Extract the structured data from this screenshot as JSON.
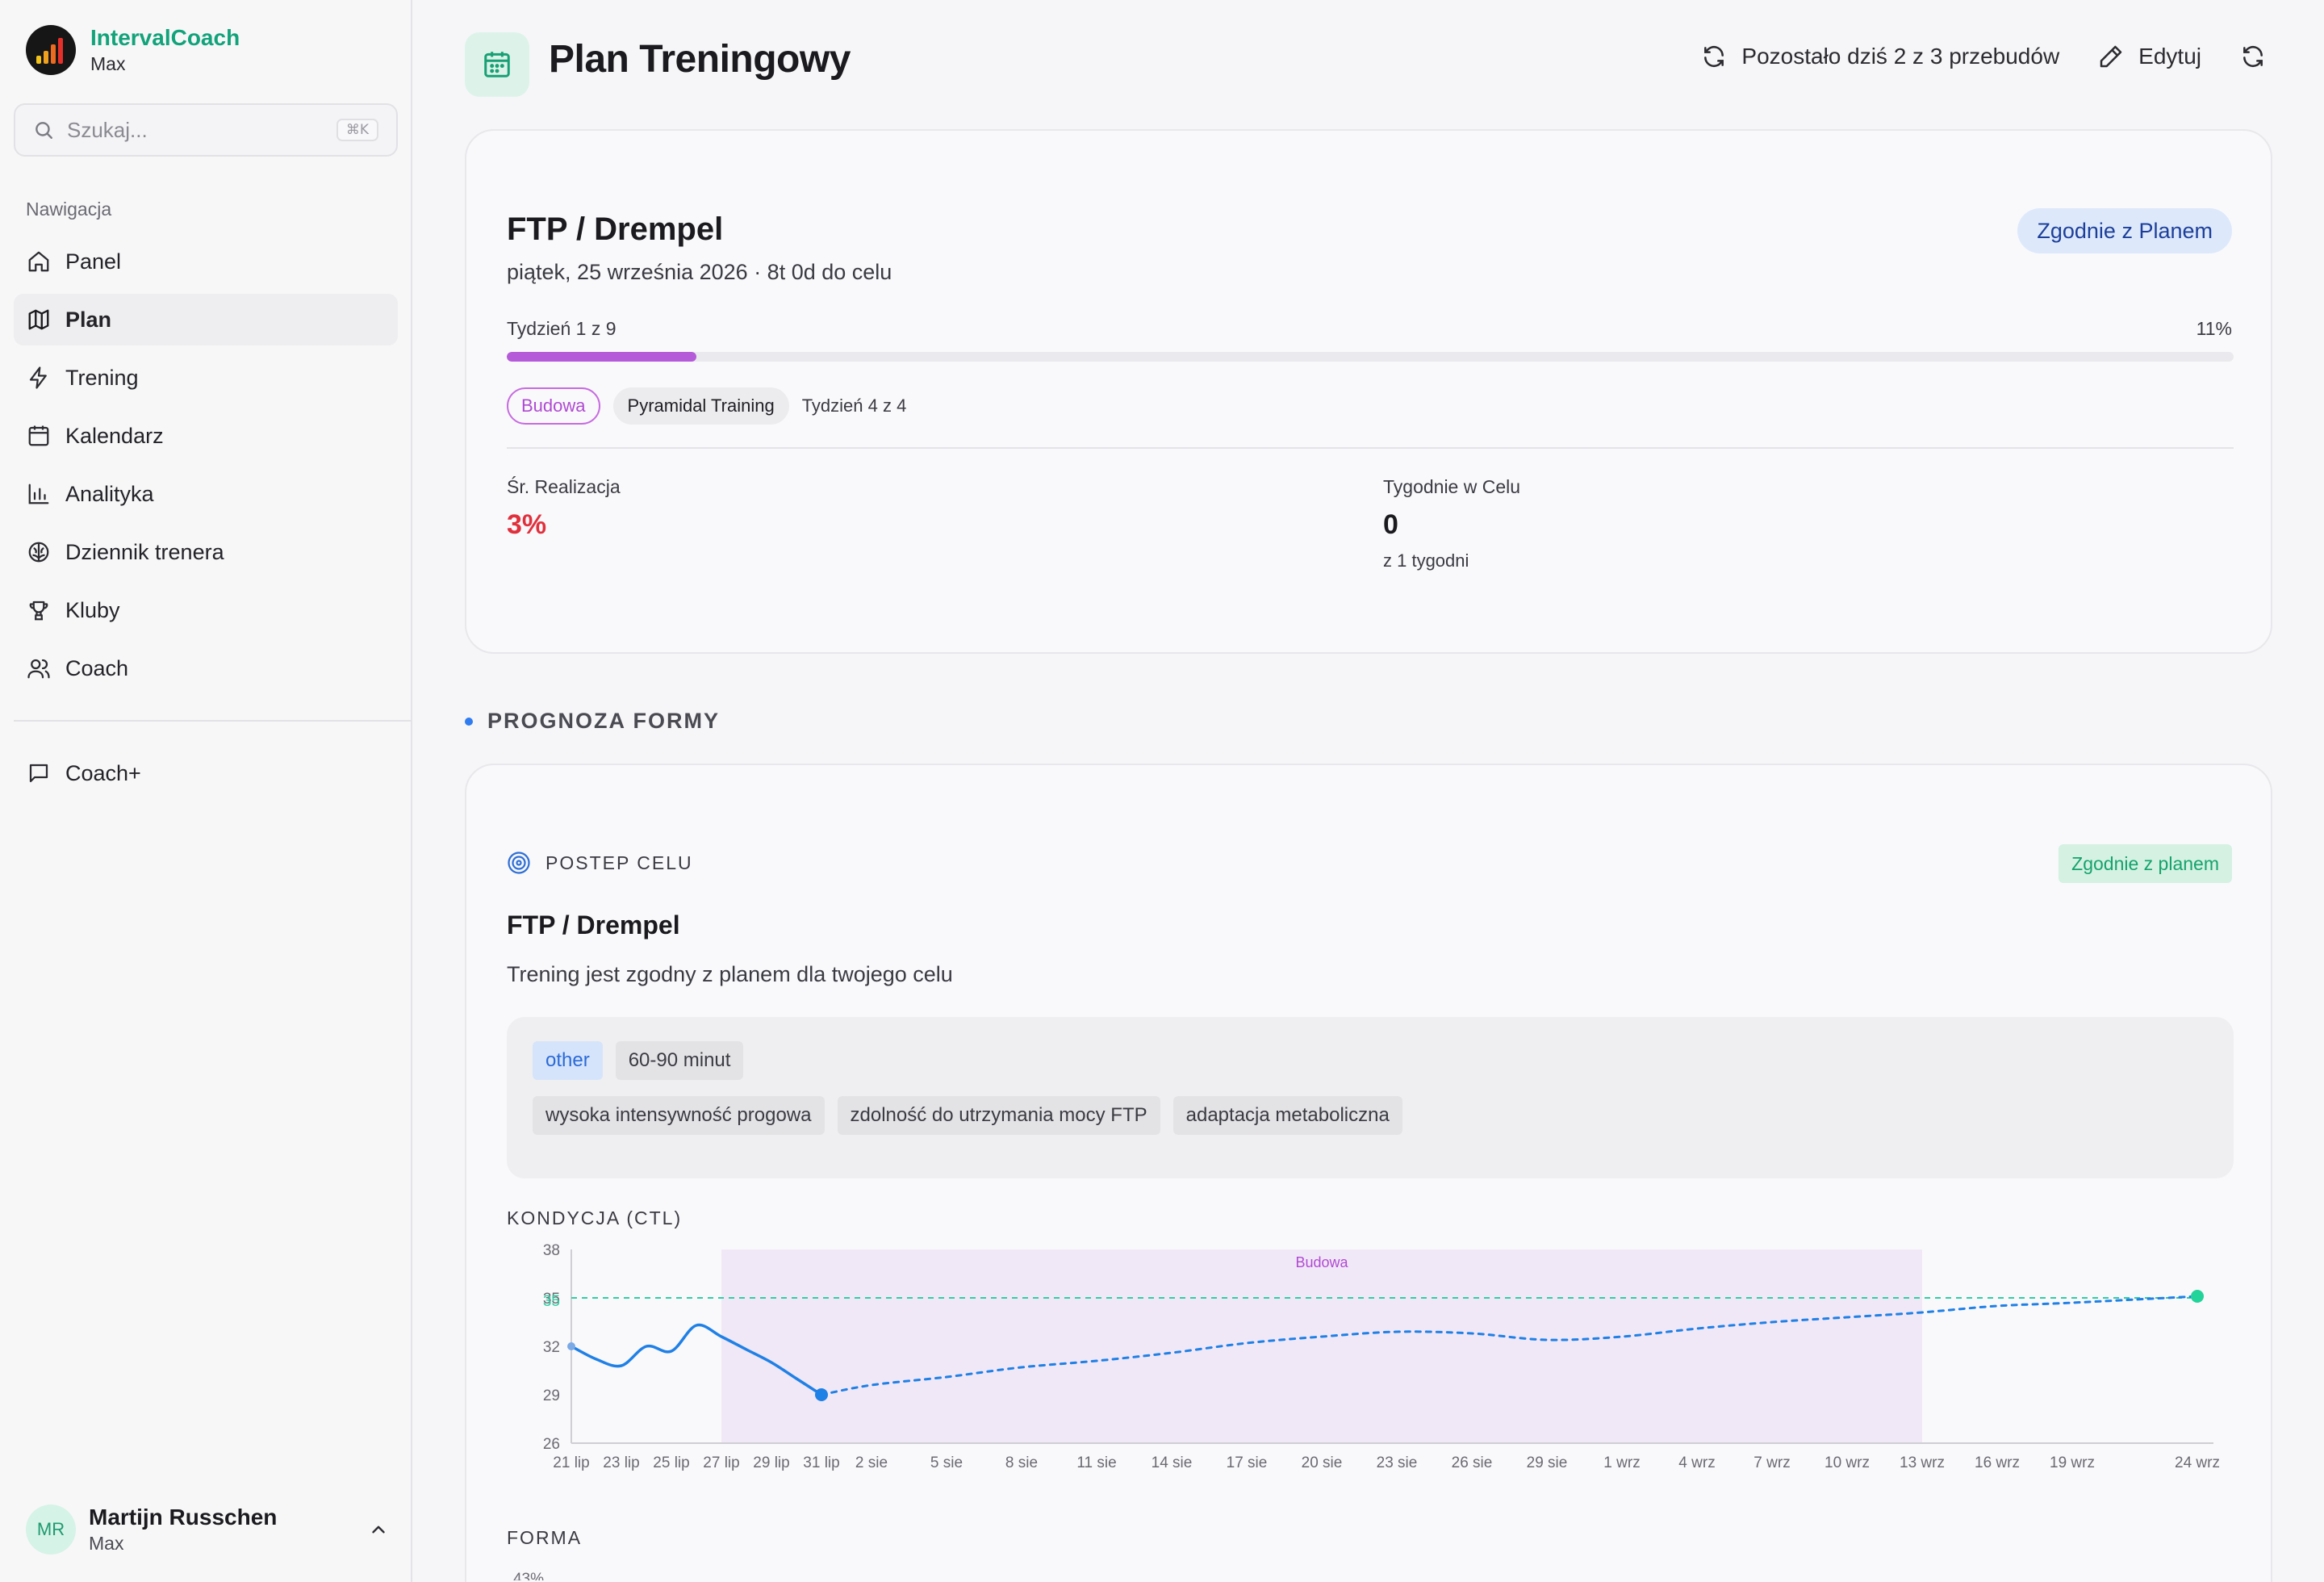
{
  "app": {
    "name": "IntervalCoach",
    "user_plan": "Max"
  },
  "search": {
    "placeholder": "Szukaj...",
    "shortcut": "⌘K"
  },
  "nav": {
    "heading": "Nawigacja",
    "items": [
      {
        "label": "Panel",
        "icon": "home-icon"
      },
      {
        "label": "Plan",
        "icon": "map-icon",
        "active": true
      },
      {
        "label": "Trening",
        "icon": "bolt-icon"
      },
      {
        "label": "Kalendarz",
        "icon": "calendar-icon"
      },
      {
        "label": "Analityka",
        "icon": "bar-chart-icon"
      },
      {
        "label": "Dziennik trenera",
        "icon": "brain-icon"
      },
      {
        "label": "Kluby",
        "icon": "trophy-icon"
      },
      {
        "label": "Coach",
        "icon": "users-icon"
      }
    ],
    "extra": [
      {
        "label": "Coach+",
        "icon": "message-icon"
      }
    ]
  },
  "user": {
    "initials": "MR",
    "name": "Martijn Russchen",
    "plan": "Max"
  },
  "header": {
    "title": "Plan Treningowy",
    "rebuilds": "Pozostało dziś 2 z 3 przebudów",
    "edit": "Edytuj"
  },
  "goal": {
    "title": "FTP / Drempel",
    "date": "piątek, 25 września 2026 · 8t 0d do celu",
    "status": "Zgodnie z Planem",
    "week_label": "Tydzień 1 z 9",
    "percent_label": "11%",
    "progress": 0.11,
    "phase": "Budowa",
    "block": "Pyramidal Training",
    "block_week": "Tydzień 4 z 4",
    "stats": [
      {
        "label": "Śr. Realizacja",
        "value": "3%",
        "sub": ""
      },
      {
        "label": "Tygodnie w Celu",
        "value": "0",
        "sub": "z 1 tygodni"
      }
    ]
  },
  "forecast": {
    "section_title": "PROGNOZA FORMY",
    "label": "POSTEP CELU",
    "status": "Zgodnie z planem",
    "title": "FTP / Drempel",
    "description": "Trening jest zgodny z planem dla twojego celu",
    "chips_row1": [
      "other",
      "60-90 minut"
    ],
    "chips_row2": [
      "wysoka intensywność progowa",
      "zdolność do utrzymania mocy FTP",
      "adaptacja metaboliczna"
    ],
    "chart_title": "KONDYCJA (CTL)",
    "next_title": "FORMA",
    "next_first_tick": "43%"
  },
  "chart_data": {
    "type": "line",
    "title": "KONDYCJA (CTL)",
    "x_tick_labels": [
      "21 lip",
      "23 lip",
      "25 lip",
      "27 lip",
      "29 lip",
      "31 lip",
      "2 sie",
      "5 sie",
      "8 sie",
      "11 sie",
      "14 sie",
      "17 sie",
      "20 sie",
      "23 sie",
      "26 sie",
      "29 sie",
      "1 wrz",
      "4 wrz",
      "7 wrz",
      "10 wrz",
      "13 wrz",
      "16 wrz",
      "19 wrz",
      "24 wrz"
    ],
    "y_ticks": [
      26,
      29,
      32,
      35,
      38
    ],
    "ylim": [
      26,
      38
    ],
    "target": {
      "value": 35,
      "label": "35",
      "color": "#2ecfa4"
    },
    "phase_band": {
      "label": "Budowa",
      "start": "27 lip",
      "end": "13 wrz",
      "color": "#f1e8f7"
    },
    "series": [
      {
        "style": "solid",
        "color": "#1f80e6",
        "points": [
          {
            "x": "21 lip",
            "y": 32.0
          },
          {
            "x": "22 lip",
            "y": 31.2
          },
          {
            "x": "23 lip",
            "y": 30.8
          },
          {
            "x": "24 lip",
            "y": 32.0
          },
          {
            "x": "25 lip",
            "y": 31.7
          },
          {
            "x": "26 lip",
            "y": 33.3
          },
          {
            "x": "27 lip",
            "y": 32.6
          },
          {
            "x": "28 lip",
            "y": 31.8
          },
          {
            "x": "29 lip",
            "y": 31.0
          },
          {
            "x": "30 lip",
            "y": 30.0
          },
          {
            "x": "31 lip",
            "y": 29.0
          }
        ]
      },
      {
        "style": "dashed",
        "color": "#1f80e6",
        "points": [
          {
            "x": "31 lip",
            "y": 29.0
          },
          {
            "x": "2 sie",
            "y": 29.6
          },
          {
            "x": "5 sie",
            "y": 30.1
          },
          {
            "x": "8 sie",
            "y": 30.7
          },
          {
            "x": "11 sie",
            "y": 31.1
          },
          {
            "x": "14 sie",
            "y": 31.6
          },
          {
            "x": "17 sie",
            "y": 32.2
          },
          {
            "x": "20 sie",
            "y": 32.6
          },
          {
            "x": "23 sie",
            "y": 32.9
          },
          {
            "x": "26 sie",
            "y": 32.8
          },
          {
            "x": "29 sie",
            "y": 32.4
          },
          {
            "x": "1 wrz",
            "y": 32.6
          },
          {
            "x": "4 wrz",
            "y": 33.1
          },
          {
            "x": "7 wrz",
            "y": 33.5
          },
          {
            "x": "10 wrz",
            "y": 33.8
          },
          {
            "x": "13 wrz",
            "y": 34.1
          },
          {
            "x": "16 wrz",
            "y": 34.5
          },
          {
            "x": "19 wrz",
            "y": 34.7
          },
          {
            "x": "24 wrz",
            "y": 35.1
          }
        ]
      }
    ]
  }
}
